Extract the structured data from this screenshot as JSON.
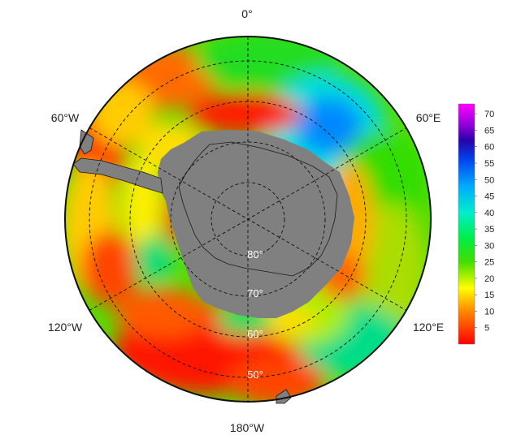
{
  "map": {
    "longitude_labels": {
      "top": "0°",
      "upper_left": "60°W",
      "upper_right": "60°E",
      "lower_left": "120°W",
      "lower_right": "120°E",
      "bottom": "180°W"
    },
    "latitude_labels": [
      "80°",
      "70°",
      "60°",
      "50°"
    ],
    "land_color": "#808080",
    "grid_style": "dashed"
  },
  "colorbar": {
    "ticks": [
      "70",
      "65",
      "60",
      "55",
      "50",
      "45",
      "40",
      "35",
      "30",
      "25",
      "20",
      "15",
      "10",
      "5"
    ],
    "min": 0,
    "max": 73,
    "stops": [
      {
        "v": 0,
        "c": "#ff0000"
      },
      {
        "v": 10,
        "c": "#ff8800"
      },
      {
        "v": 17,
        "c": "#ffff00"
      },
      {
        "v": 25,
        "c": "#44dd00"
      },
      {
        "v": 32,
        "c": "#00ee44"
      },
      {
        "v": 40,
        "c": "#00eecc"
      },
      {
        "v": 48,
        "c": "#00aaff"
      },
      {
        "v": 56,
        "c": "#0044ee"
      },
      {
        "v": 62,
        "c": "#2a00aa"
      },
      {
        "v": 67,
        "c": "#9900dd"
      },
      {
        "v": 73,
        "c": "#ff00ff"
      }
    ]
  }
}
